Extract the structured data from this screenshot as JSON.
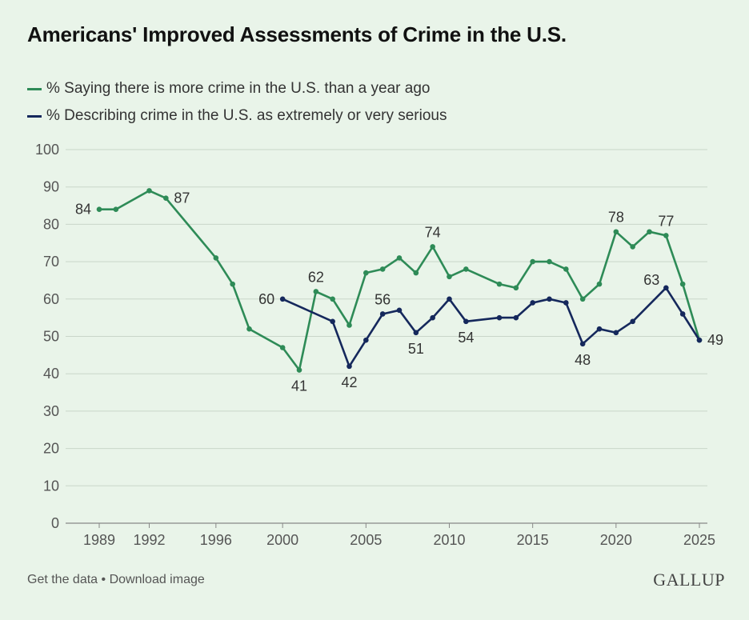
{
  "colors": {
    "more_crime": "#2e8b57",
    "serious": "#15285c",
    "grid": "#c9d6c9",
    "background": "#e9f4e9"
  },
  "chart_data": {
    "type": "line",
    "title": "Americans' Improved Assessments of Crime in the U.S.",
    "xlabel": "",
    "ylabel": "",
    "ylim": [
      0,
      100
    ],
    "xlim": [
      1989,
      2025
    ],
    "yticks": [
      0,
      10,
      20,
      30,
      40,
      50,
      60,
      70,
      80,
      90,
      100
    ],
    "xticks": [
      1989,
      1992,
      1996,
      2000,
      2005,
      2010,
      2015,
      2020,
      2025
    ],
    "legend_position": "top-left",
    "series": [
      {
        "name": "% Saying there is more crime in the U.S. than a year ago",
        "color": "#2e8b57",
        "points": [
          [
            1989,
            84
          ],
          [
            1990,
            84
          ],
          [
            1992,
            89
          ],
          [
            1993,
            87
          ],
          [
            1996,
            71
          ],
          [
            1997,
            64
          ],
          [
            1998,
            52
          ],
          [
            2000,
            47
          ],
          [
            2001,
            41
          ],
          [
            2002,
            62
          ],
          [
            2003,
            60
          ],
          [
            2004,
            53
          ],
          [
            2005,
            67
          ],
          [
            2006,
            68
          ],
          [
            2007,
            71
          ],
          [
            2008,
            67
          ],
          [
            2009,
            74
          ],
          [
            2010,
            66
          ],
          [
            2011,
            68
          ],
          [
            2013,
            64
          ],
          [
            2014,
            63
          ],
          [
            2015,
            70
          ],
          [
            2016,
            70
          ],
          [
            2017,
            68
          ],
          [
            2018,
            60
          ],
          [
            2019,
            64
          ],
          [
            2020,
            78
          ],
          [
            2021,
            74
          ],
          [
            2022,
            78
          ],
          [
            2023,
            77
          ],
          [
            2024,
            64
          ],
          [
            2025,
            49
          ]
        ],
        "labels": [
          {
            "x": 1989,
            "y": 84,
            "text": "84",
            "anchor": "end",
            "pos": "left"
          },
          {
            "x": 1993,
            "y": 87,
            "text": "87",
            "anchor": "start",
            "pos": "right"
          },
          {
            "x": 2001,
            "y": 41,
            "text": "41",
            "anchor": "middle",
            "pos": "below"
          },
          {
            "x": 2002,
            "y": 62,
            "text": "62",
            "anchor": "middle",
            "pos": "above"
          },
          {
            "x": 2009,
            "y": 74,
            "text": "74",
            "anchor": "middle",
            "pos": "above"
          },
          {
            "x": 2020,
            "y": 78,
            "text": "78",
            "anchor": "middle",
            "pos": "above"
          },
          {
            "x": 2023,
            "y": 77,
            "text": "77",
            "anchor": "middle",
            "pos": "above"
          }
        ]
      },
      {
        "name": "% Describing crime in the U.S. as extremely or very serious",
        "color": "#15285c",
        "points": [
          [
            2000,
            60
          ],
          [
            2003,
            54
          ],
          [
            2004,
            42
          ],
          [
            2005,
            49
          ],
          [
            2006,
            56
          ],
          [
            2007,
            57
          ],
          [
            2008,
            51
          ],
          [
            2009,
            55
          ],
          [
            2010,
            60
          ],
          [
            2011,
            54
          ],
          [
            2013,
            55
          ],
          [
            2014,
            55
          ],
          [
            2015,
            59
          ],
          [
            2016,
            60
          ],
          [
            2017,
            59
          ],
          [
            2018,
            48
          ],
          [
            2019,
            52
          ],
          [
            2020,
            51
          ],
          [
            2021,
            54
          ],
          [
            2023,
            63
          ],
          [
            2024,
            56
          ],
          [
            2025,
            49
          ]
        ],
        "labels": [
          {
            "x": 2000,
            "y": 60,
            "text": "60",
            "anchor": "end",
            "pos": "left"
          },
          {
            "x": 2004,
            "y": 42,
            "text": "42",
            "anchor": "middle",
            "pos": "below"
          },
          {
            "x": 2006,
            "y": 56,
            "text": "56",
            "anchor": "middle",
            "pos": "above"
          },
          {
            "x": 2008,
            "y": 51,
            "text": "51",
            "anchor": "middle",
            "pos": "below"
          },
          {
            "x": 2011,
            "y": 54,
            "text": "54",
            "anchor": "middle",
            "pos": "below"
          },
          {
            "x": 2018,
            "y": 48,
            "text": "48",
            "anchor": "middle",
            "pos": "below"
          },
          {
            "x": 2023,
            "y": 63,
            "text": "63",
            "anchor": "end",
            "pos": "above-left"
          },
          {
            "x": 2025,
            "y": 49,
            "text": "49",
            "anchor": "start",
            "pos": "right"
          }
        ]
      }
    ]
  },
  "footer": {
    "get_data": "Get the data",
    "separator": "•",
    "download": "Download image"
  },
  "brand": {
    "logo_text": "GALLUP"
  }
}
